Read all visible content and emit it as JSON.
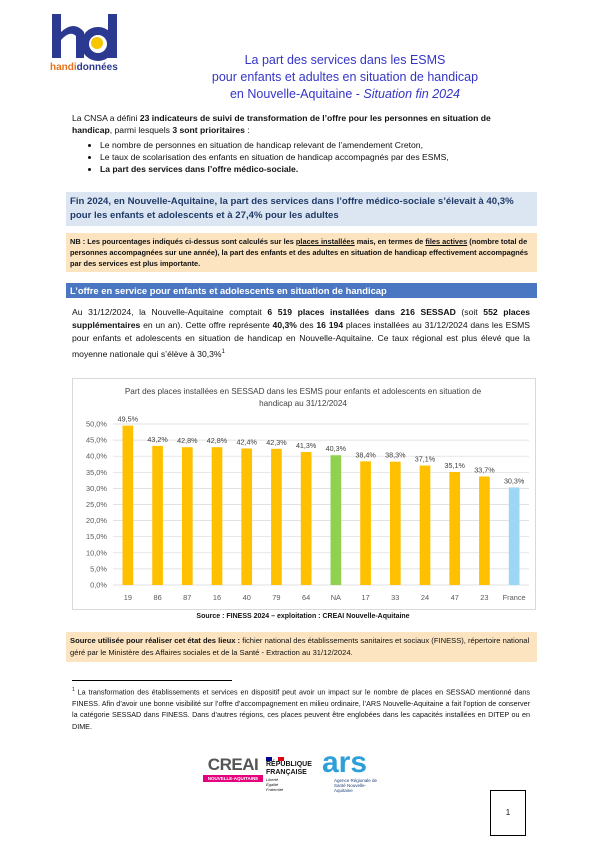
{
  "header": {
    "logo_handi": "handi",
    "logo_donnees": "données",
    "title_lines": [
      "La part des services dans les ESMS",
      "pour enfants et adultes en situation de handicap",
      "en Nouvelle-Aquitaine - "
    ],
    "title_emphasis": "Situation fin 2024"
  },
  "intro": {
    "parts": [
      "La CNSA a défini ",
      "23 indicateurs de suivi de transformation de l’offre pour les personnes en situation de handicap",
      ", parmi lesquels ",
      "3 sont prioritaires",
      " :"
    ],
    "bullets": [
      "Le nombre de personnes en situation de handicap relevant de l’amendement Creton,",
      "Le taux de scolarisation des enfants en situation de handicap accompagnés par des ESMS,",
      "La part des services dans l’offre médico-sociale."
    ]
  },
  "highlight": "Fin 2024, en Nouvelle-Aquitaine, la part des services dans l’offre médico-sociale s’élevait à 40,3% pour les enfants et adolescents et à 27,4% pour les adultes",
  "nb": {
    "parts": [
      "NB : Les pourcentages indiqués ci-dessus sont calculés sur les ",
      "places installées",
      " mais, en termes de ",
      "files actives",
      " (nombre total de personnes accompagnées sur une année), la part des enfants et des adultes en situation de handicap effectivement accompagnés par des services est plus importante."
    ]
  },
  "section": {
    "title": "L’offre en service pour enfants et adolescents en situation de handicap",
    "parts": [
      "Au 31/12/2024, la Nouvelle-Aquitaine comptait ",
      "6 519 places installées dans 216 SESSAD",
      " (soit ",
      "552 places supplémentaires",
      " en un an). Cette offre représente ",
      "40,3%",
      " des ",
      "16 194",
      " places installées au 31/12/2024 dans les ESMS pour enfants et adolescents en situation de handicap en Nouvelle-Aquitaine. Ce taux régional est plus élevé que la moyenne nationale qui s’élève à 30,3%"
    ],
    "footnote_ref": "1"
  },
  "chart_data": {
    "type": "bar",
    "title": "Part des places installées en SESSAD dans les ESMS pour enfants et adolescents en situation de handicap au 31/12/2024",
    "categories": [
      "19",
      "86",
      "87",
      "16",
      "40",
      "79",
      "64",
      "NA",
      "17",
      "33",
      "24",
      "47",
      "23",
      "France"
    ],
    "values": [
      49.5,
      43.2,
      42.8,
      42.8,
      42.4,
      42.3,
      41.3,
      40.3,
      38.4,
      38.3,
      37.1,
      35.1,
      33.7,
      30.3
    ],
    "value_labels": [
      "49,5%",
      "43,2%",
      "42,8%",
      "42,8%",
      "42,4%",
      "42,3%",
      "41,3%",
      "40,3%",
      "38,4%",
      "38,3%",
      "37,1%",
      "35,1%",
      "33,7%",
      "30,3%"
    ],
    "colors": [
      "#ffc000",
      "#ffc000",
      "#ffc000",
      "#ffc000",
      "#ffc000",
      "#ffc000",
      "#ffc000",
      "#92d050",
      "#ffc000",
      "#ffc000",
      "#ffc000",
      "#ffc000",
      "#ffc000",
      "#9dd7f5"
    ],
    "ylim": [
      0,
      50
    ],
    "yticks": [
      {
        "value": 0,
        "label": "0,0%"
      },
      {
        "value": 5,
        "label": "5,0%"
      },
      {
        "value": 10,
        "label": "10,0%"
      },
      {
        "value": 15,
        "label": "15,0%"
      },
      {
        "value": 20,
        "label": "20,0%"
      },
      {
        "value": 25,
        "label": "25,0%"
      },
      {
        "value": 30,
        "label": "30,0%"
      },
      {
        "value": 35,
        "label": "35,0%"
      },
      {
        "value": 40,
        "label": "40,0%"
      },
      {
        "value": 45,
        "label": "45,0%"
      },
      {
        "value": 50,
        "label": "50,0%"
      }
    ],
    "grid": true
  },
  "chart_source": "Source : FINESS 2024 – exploitation : CREAI Nouvelle-Aquitaine",
  "source_box": {
    "parts": [
      "Source utilisée pour réaliser cet état des lieux :",
      " fichier national des établissements sanitaires et sociaux (FINESS), répertoire national géré par le Ministère des Affaires sociales et de la Santé - Extraction au 31/12/2024."
    ]
  },
  "footnote": {
    "number": "1",
    "text": "La transformation des établissements et services en dispositif peut avoir un impact sur le nombre de places en SESSAD mentionné dans FINESS. Afin d’avoir une bonne visibilité sur l’offre d’accompagnement en milieu ordinaire, l’ARS Nouvelle-Aquitaine a fait l’option de conserver la catégorie SESSAD dans FINESS. Dans d’autres régions, ces places peuvent être englobées dans les capacités installées en DITEP ou en DIME."
  },
  "footer": {
    "creai": "CREAI",
    "creai_region": "NOUVELLE-AQUITAINE",
    "rf_1": "RÉPUBLIQUE",
    "rf_2": "FRANÇAISE",
    "rf_motto": "Liberté Égalité Fraternité",
    "ars": "ars",
    "ars_sub": "Agence Régionale de Santé Nouvelle-Aquitaine",
    "page": "1"
  }
}
